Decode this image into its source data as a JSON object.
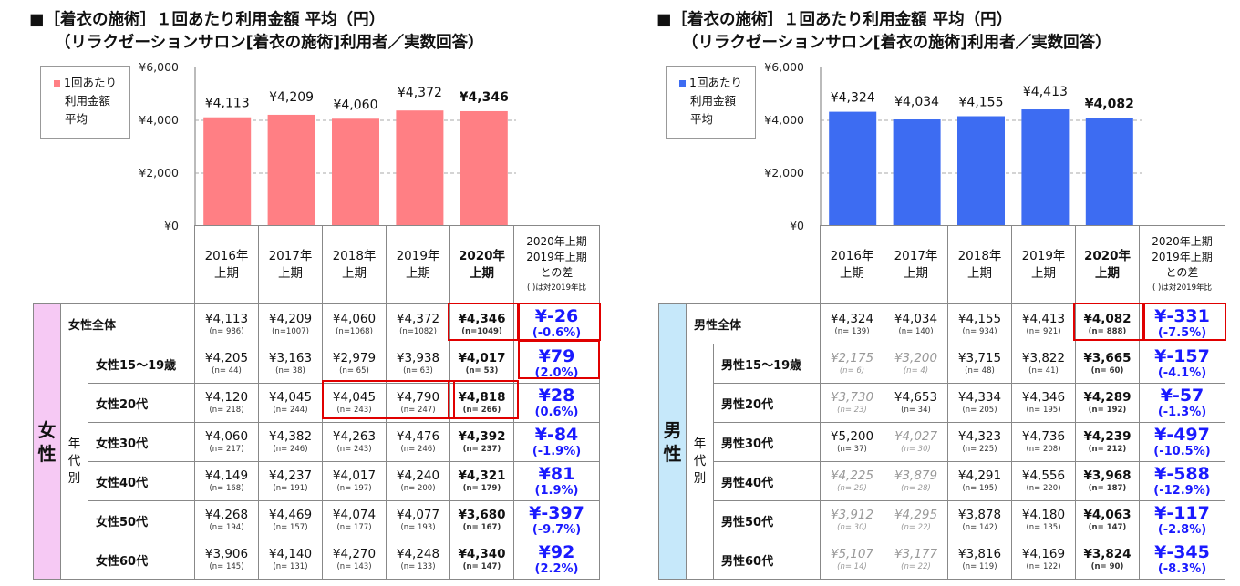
{
  "panels": [
    {
      "id": "female",
      "title_line1": "■［着衣の施術］１回あたり利用金額 平均（円）",
      "title_line2": "（リラクゼーションサロン[着衣の施術]利用者／実数回答）",
      "legend": [
        "1回あたり",
        "利用金額",
        "平均"
      ],
      "color": "#ff7f84",
      "sex_label": [
        "女",
        "性"
      ],
      "sex_bg": "#f6c9f4",
      "age_group_label": [
        "年",
        "代",
        "別"
      ],
      "chart_data": {
        "type": "bar",
        "categories": [
          "2016年上期",
          "2017年上期",
          "2018年上期",
          "2019年上期",
          "2020年上期"
        ],
        "values": [
          4113,
          4209,
          4060,
          4372,
          4346
        ],
        "data_labels": [
          "¥4,113",
          "¥4,209",
          "¥4,060",
          "¥4,372",
          "¥4,346"
        ],
        "ylim": [
          0,
          6000
        ],
        "yticks": [
          "¥6,000",
          "¥4,000",
          "¥2,000",
          "¥0"
        ],
        "grid": true
      },
      "years": [
        [
          "2016年",
          "上期"
        ],
        [
          "2017年",
          "上期"
        ],
        [
          "2018年",
          "上期"
        ],
        [
          "2019年",
          "上期"
        ],
        [
          "2020年",
          "上期"
        ]
      ],
      "diff_header": [
        "2020年上期",
        "2019年上期",
        "との差"
      ],
      "diff_header_note": "( )は対2019年比",
      "rows": [
        {
          "label": "女性全体",
          "cells": [
            [
              "¥4,113",
              "(n= 986)"
            ],
            [
              "¥4,209",
              "(n=1007)"
            ],
            [
              "¥4,060",
              "(n=1068)"
            ],
            [
              "¥4,372",
              "(n=1082)"
            ],
            [
              "¥4,346",
              "(n=1049)"
            ]
          ],
          "diff": "¥-26",
          "pct": "(-0.6%)"
        },
        {
          "label": "女性15～19歳",
          "cells": [
            [
              "¥4,205",
              "(n=  44)"
            ],
            [
              "¥3,163",
              "(n=  38)"
            ],
            [
              "¥2,979",
              "(n=  65)"
            ],
            [
              "¥3,938",
              "(n=  63)"
            ],
            [
              "¥4,017",
              "(n=  53)"
            ]
          ],
          "diff": "¥79",
          "pct": "(2.0%)"
        },
        {
          "label": "女性20代",
          "cells": [
            [
              "¥4,120",
              "(n= 218)"
            ],
            [
              "¥4,045",
              "(n= 244)"
            ],
            [
              "¥4,045",
              "(n= 243)"
            ],
            [
              "¥4,790",
              "(n= 247)"
            ],
            [
              "¥4,818",
              "(n= 266)"
            ]
          ],
          "diff": "¥28",
          "pct": "(0.6%)"
        },
        {
          "label": "女性30代",
          "cells": [
            [
              "¥4,060",
              "(n= 217)"
            ],
            [
              "¥4,382",
              "(n= 246)"
            ],
            [
              "¥4,263",
              "(n= 243)"
            ],
            [
              "¥4,476",
              "(n= 246)"
            ],
            [
              "¥4,392",
              "(n= 237)"
            ]
          ],
          "diff": "¥-84",
          "pct": "(-1.9%)"
        },
        {
          "label": "女性40代",
          "cells": [
            [
              "¥4,149",
              "(n= 168)"
            ],
            [
              "¥4,237",
              "(n= 191)"
            ],
            [
              "¥4,017",
              "(n= 197)"
            ],
            [
              "¥4,240",
              "(n= 200)"
            ],
            [
              "¥4,321",
              "(n= 179)"
            ]
          ],
          "diff": "¥81",
          "pct": "(1.9%)"
        },
        {
          "label": "女性50代",
          "cells": [
            [
              "¥4,268",
              "(n= 194)"
            ],
            [
              "¥4,469",
              "(n= 157)"
            ],
            [
              "¥4,074",
              "(n= 177)"
            ],
            [
              "¥4,077",
              "(n= 193)"
            ],
            [
              "¥3,680",
              "(n= 167)"
            ]
          ],
          "diff": "¥-397",
          "pct": "(-9.7%)"
        },
        {
          "label": "女性60代",
          "cells": [
            [
              "¥3,906",
              "(n= 145)"
            ],
            [
              "¥4,140",
              "(n= 131)"
            ],
            [
              "¥4,270",
              "(n= 143)"
            ],
            [
              "¥4,248",
              "(n= 133)"
            ],
            [
              "¥4,340",
              "(n= 147)"
            ]
          ],
          "diff": "¥92",
          "pct": "(2.2%)"
        }
      ]
    },
    {
      "id": "male",
      "title_line1": "■［着衣の施術］１回あたり利用金額 平均（円）",
      "title_line2": "（リラクゼーションサロン[着衣の施術]利用者／実数回答）",
      "legend": [
        "1回あたり",
        "利用金額",
        "平均"
      ],
      "color": "#3d6cf2",
      "sex_label": [
        "男",
        "性"
      ],
      "sex_bg": "#c6e8fa",
      "age_group_label": [
        "年",
        "代",
        "別"
      ],
      "chart_data": {
        "type": "bar",
        "categories": [
          "2016年上期",
          "2017年上期",
          "2018年上期",
          "2019年上期",
          "2020年上期"
        ],
        "values": [
          4324,
          4034,
          4155,
          4413,
          4082
        ],
        "data_labels": [
          "¥4,324",
          "¥4,034",
          "¥4,155",
          "¥4,413",
          "¥4,082"
        ],
        "ylim": [
          0,
          6000
        ],
        "yticks": [
          "¥6,000",
          "¥4,000",
          "¥2,000",
          "¥0"
        ],
        "grid": true
      },
      "years": [
        [
          "2016年",
          "上期"
        ],
        [
          "2017年",
          "上期"
        ],
        [
          "2018年",
          "上期"
        ],
        [
          "2019年",
          "上期"
        ],
        [
          "2020年",
          "上期"
        ]
      ],
      "diff_header": [
        "2020年上期",
        "2019年上期",
        "との差"
      ],
      "diff_header_note": "( )は対2019年比",
      "rows": [
        {
          "label": "男性全体",
          "cells": [
            [
              "¥4,324",
              "(n= 139)"
            ],
            [
              "¥4,034",
              "(n= 140)"
            ],
            [
              "¥4,155",
              "(n= 934)"
            ],
            [
              "¥4,413",
              "(n= 921)"
            ],
            [
              "¥4,082",
              "(n= 888)"
            ]
          ],
          "diff": "¥-331",
          "pct": "(-7.5%)"
        },
        {
          "label": "男性15～19歳",
          "cells": [
            [
              "¥2,175",
              "(n=   6)"
            ],
            [
              "¥3,200",
              "(n=   4)"
            ],
            [
              "¥3,715",
              "(n=  48)"
            ],
            [
              "¥3,822",
              "(n=  41)"
            ],
            [
              "¥3,665",
              "(n=  60)"
            ]
          ],
          "diff": "¥-157",
          "pct": "(-4.1%)"
        },
        {
          "label": "男性20代",
          "cells": [
            [
              "¥3,730",
              "(n=  23)"
            ],
            [
              "¥4,653",
              "(n=  34)"
            ],
            [
              "¥4,334",
              "(n= 205)"
            ],
            [
              "¥4,346",
              "(n= 195)"
            ],
            [
              "¥4,289",
              "(n= 192)"
            ]
          ],
          "diff": "¥-57",
          "pct": "(-1.3%)"
        },
        {
          "label": "男性30代",
          "cells": [
            [
              "¥5,200",
              "(n=  37)"
            ],
            [
              "¥4,027",
              "(n=  30)"
            ],
            [
              "¥4,323",
              "(n= 225)"
            ],
            [
              "¥4,736",
              "(n= 208)"
            ],
            [
              "¥4,239",
              "(n= 212)"
            ]
          ],
          "diff": "¥-497",
          "pct": "(-10.5%)"
        },
        {
          "label": "男性40代",
          "cells": [
            [
              "¥4,225",
              "(n=  29)"
            ],
            [
              "¥3,879",
              "(n=  28)"
            ],
            [
              "¥4,291",
              "(n= 195)"
            ],
            [
              "¥4,556",
              "(n= 220)"
            ],
            [
              "¥3,968",
              "(n= 187)"
            ]
          ],
          "diff": "¥-588",
          "pct": "(-12.9%)"
        },
        {
          "label": "男性50代",
          "cells": [
            [
              "¥3,912",
              "(n=  30)"
            ],
            [
              "¥4,295",
              "(n=  22)"
            ],
            [
              "¥3,878",
              "(n= 142)"
            ],
            [
              "¥4,180",
              "(n= 135)"
            ],
            [
              "¥4,063",
              "(n= 147)"
            ]
          ],
          "diff": "¥-117",
          "pct": "(-2.8%)"
        },
        {
          "label": "男性60代",
          "cells": [
            [
              "¥5,107",
              "(n=  14)"
            ],
            [
              "¥3,177",
              "(n=  22)"
            ],
            [
              "¥3,816",
              "(n= 119)"
            ],
            [
              "¥4,169",
              "(n= 122)"
            ],
            [
              "¥3,824",
              "(n=  90)"
            ]
          ],
          "diff": "¥-345",
          "pct": "(-8.3%)"
        }
      ]
    }
  ]
}
